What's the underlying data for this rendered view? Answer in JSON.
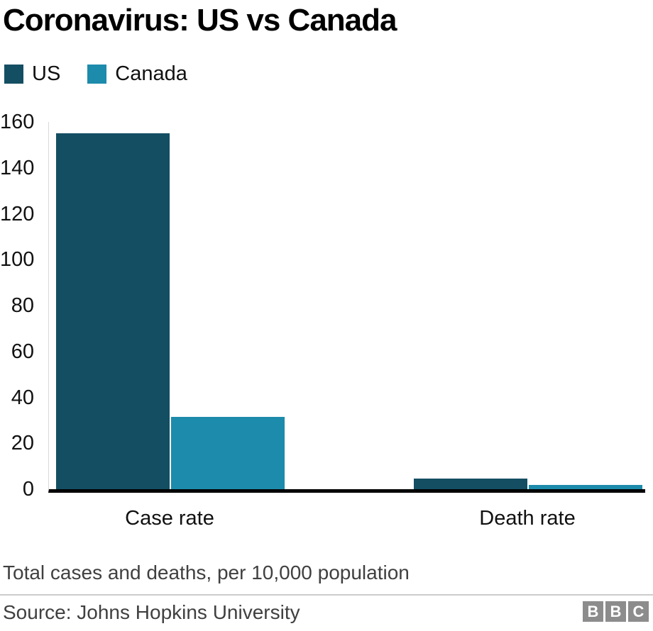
{
  "header": {
    "title": "Coronavirus: US vs Canada"
  },
  "chart_data": {
    "type": "bar",
    "title": "Coronavirus: US vs Canada",
    "categories": [
      "Case rate",
      "Death rate"
    ],
    "series": [
      {
        "name": "US",
        "color": "#144e63",
        "values": [
          155,
          4.6
        ]
      },
      {
        "name": "Canada",
        "color": "#1d8bab",
        "values": [
          31.5,
          2
        ]
      }
    ],
    "xlabel": "",
    "ylabel": "",
    "ylim": [
      0,
      160
    ],
    "yticks": [
      0,
      20,
      40,
      60,
      80,
      100,
      120,
      140,
      160
    ],
    "grid": false,
    "legend_position": "top-left"
  },
  "footer": {
    "note": "Total cases and deaths, per 10,000 population",
    "source": "Source: Johns Hopkins University",
    "logo_letters": [
      "B",
      "B",
      "C"
    ]
  }
}
